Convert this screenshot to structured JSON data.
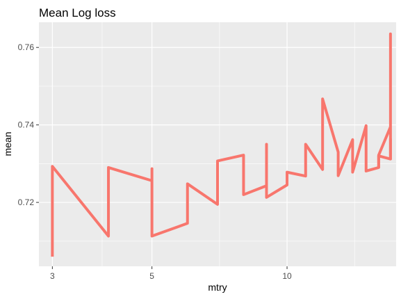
{
  "chart_data": {
    "type": "line",
    "title": "Mean Log loss",
    "xlabel": "mtry",
    "ylabel": "mean",
    "x_scale": "log",
    "xlim": [
      2.8,
      17.5
    ],
    "ylim": [
      0.7035,
      0.7665
    ],
    "x_ticks": [
      3,
      5,
      10
    ],
    "x_tick_labels": [
      "3",
      "5",
      "10"
    ],
    "y_ticks": [
      0.72,
      0.74,
      0.76
    ],
    "y_tick_labels": [
      "0.72",
      "0.74",
      "0.76"
    ],
    "grid": true,
    "legend": "none",
    "series": [
      {
        "color": "#F8766D",
        "x": [
          3,
          3,
          4,
          4,
          5,
          5,
          5,
          6,
          6,
          7,
          7,
          8,
          8,
          9,
          9,
          9,
          10,
          10,
          11,
          11,
          12,
          12,
          13,
          13,
          14,
          14,
          15,
          15,
          16,
          16,
          17,
          17
        ],
        "y": [
          0.706,
          0.7293,
          0.7113,
          0.729,
          0.7256,
          0.7287,
          0.7113,
          0.7146,
          0.7248,
          0.7195,
          0.7307,
          0.7322,
          0.722,
          0.7243,
          0.735,
          0.7213,
          0.7245,
          0.7278,
          0.7268,
          0.735,
          0.7285,
          0.7467,
          0.733,
          0.7269,
          0.7362,
          0.7278,
          0.7398,
          0.7281,
          0.729,
          0.732,
          0.7312,
          0.7365
        ]
      },
      {
        "color": "#F8766D",
        "x": [
          16,
          16,
          17,
          17,
          17
        ],
        "y": [
          0.7289,
          0.7322,
          0.7395,
          0.7635,
          0.731
        ]
      }
    ]
  }
}
